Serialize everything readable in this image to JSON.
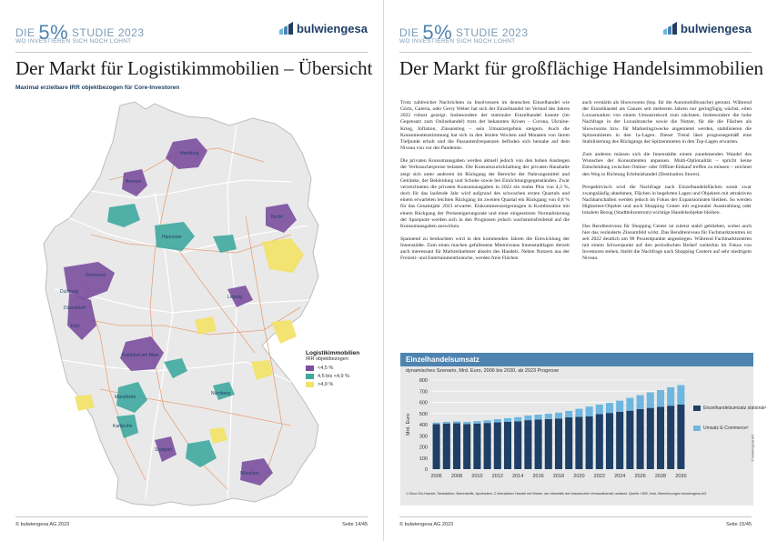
{
  "brand": {
    "die": "DIE",
    "big": "5%",
    "studie": "STUDIE 2023",
    "tagline": "WO INVESTIEREN SICH NOCH LOHNT",
    "logo": "bulwiengesa"
  },
  "left_page": {
    "title": "Der Markt für Logistikimmobilien – Übersicht",
    "subtitle": "Maximal erzielbare IRR objektbezogen für Core-Investoren",
    "legend": {
      "title": "Logistikimmobilien",
      "sub": "IRR objektbezogen",
      "items": [
        {
          "label": "<4,5 %",
          "color": "#7b4f9e"
        },
        {
          "label": "4,5 bis <4,9 %",
          "color": "#3fa99f"
        },
        {
          "label": ">4,9 %",
          "color": "#f2e36b"
        }
      ]
    },
    "cities": [
      "Hamburg",
      "Bremen",
      "Berlin",
      "Hannover",
      "Dortmund",
      "Duisburg",
      "Düsseldorf",
      "Köln",
      "Frankfurt am Main",
      "Mannheim",
      "Karlsruhe",
      "Stuttgart",
      "Nürnberg",
      "München",
      "Leipzig"
    ],
    "footer_left": "© bulwiengesa AG 2023",
    "footer_right": "Seite 14/45"
  },
  "right_page": {
    "title": "Der Markt für großflächige Handelsimmobilien",
    "col1": [
      "Trotz zahlreicher Nachrichten zu Insolvenzen im deutschen Einzelhandel wie Görtz, Galeria, oder Gerry Weber hat sich der Einzelhandel im Verlauf des Jahres 2022 robust gezeigt. Insbesondere der stationäre Einzelhandel konnte (im Gegensatz zum Onlinehandel) trotz der bekannten Krisen – Corona, Ukraine-Krieg, Inflation, Zinsanstieg – sein Umsatzergebnis steigern. Auch die Konsumentenstimmung hat sich in den letzten Wochen und Monaten von ihrem Tiefpunkt erholt und die Passantenfrequenzen befinden sich beinahe auf dem Niveau von vor der Pandemie.",
      "Die privaten Konsumausgaben werden aktuell jedoch von den hohen Anstiegen der Verbraucherpreise belastet. Die Konsumzurückhaltung der privaten Haushalte zeigt sich unter anderem im Rückgang der Bereiche der Nahrungsmittel und Getränke, der Bekleidung und Schuhe sowie bei Einrichtungsgegenständen. Zwar verzeichneten die privaten Konsumausgaben in 2022 ein reales Plus von 4,3 %, doch für das laufende Jahr wird aufgrund des schwachen ersten Quartals und einem erwarteten leichten Rückgang im zweiten Quartal ein Rückgang von 0,8 % für das Gesamtjahr 2023 erwartet. Einkommenszeigerungen in Kombination mit einem Rückgang der Preissteigerungsrate und einer eingesetzten Normalisierung der Sparquote werden sich in den Prognosen jedoch wachstumsfreibend auf die Konsumausgaben auswirken.",
      "Spannend zu beobachten wird in den kommenden Jahren die Entwicklung der Innenstädte. Zum einen machen gefallenene Mietniveaus Innenstadtlagen derzeit auch interessant für Markteilnehmer abseits des Handels. Neben Nutzern aus der Freizeit- und Entertainmentbranche, werden freie Flächen"
    ],
    "col2": [
      "auch verstärkt als Showrooms (bsp. für die Automobilbranche) genutzt. Während der Einzelhandel als Ganzes seit mehreren Jahren nur geringfügig wächst, eilen Luxusmarken von einem Umsatzrekord zum nächsten. Insbesondere die hohe Nachfrage in der Luxusbranche sowie die Nutzer, für die die Flächen als Showrooms bzw. für Marketingzwecke angemietet werden, stabilisieren die Spitzenmieten in den 1a-Lagen. Dieser Trend lässt prognosegemäß eine Stabilisierung des Rückgangs der Spitzenmieten in den Top-Lagen erwarten.",
      "Zum anderen müssen sich die Innenstädte einem zunehmenden Wandel des Wunsches der Konsumenten anpassen. Multi-Optionalität – spricht keine Entscheidung zwischen Online- oder Offline-Einkauf treffen zu müssen – zeichnet den Weg in Richtung Erlebnishandel (Destination Stores).",
      "Perspektivisch wird die Nachfrage nach Einzelhandelsflächen somit zwar zwangsläufig abnehmen, Flächen in begehrten Lagen und Objekten mit attraktiven Nachbarschaften werden jedoch im Fokus der Expansionisten bleiben. So werden Highstreet-Objekte und auch Shopping Center mit regionaler Ausstrahlung oder lokalem Bezug (Stadtteilzentrum) wichtige Handelsobjekte bleiben.",
      "Das Renditeniveau für Shopping Center ist zuletzt stabil geblieben, wobei auch hier das veränderte Zinsumfeld wirkt. Das Renditeniveau für Fachmarktzentren ist seit 2022 deutlich um 90 Prozentpunkte angestiegen. Während Fachmarktzentren mit einem Schwerpunkt auf den periodischen Bedarf weiterhin im Fokus von Investoren stehen, bleibt die Nachfrage nach Shopping Centern auf sehr niedrigem Niveau."
    ],
    "chart_box_title": "Einzelhandelsumsatz",
    "chart_box_sub": "dynamisches Szenario, Mrd. Euro, 2006 bis 2030, ab 2023 Prognose",
    "chart_note": "1 Ohne Kfz-Handel, Tankstellen, Brennstoffe, Apotheken. 2 Interaktiver Handel mit Waren, der ebenfalls den klassischen Versandhandel umfasst. Quelle: HDE, bwh, Berechnungen bulwiengesa AG",
    "chart_copyright": "© bulwiengesa AG",
    "footer_left": "© bulwiengesa AG 2023",
    "footer_right": "Seite 15/45"
  },
  "chart_data": {
    "type": "bar",
    "stacked": true,
    "title": "Einzelhandelsumsatz",
    "subtitle": "dynamisches Szenario, Mrd. Euro, 2006 bis 2030, ab 2023 Prognose",
    "ylabel": "Mrd. Euro",
    "ylim": [
      0,
      800
    ],
    "yticks": [
      0,
      100,
      200,
      300,
      400,
      500,
      600,
      700,
      800
    ],
    "categories": [
      "2006",
      "2007",
      "2008",
      "2009",
      "2010",
      "2011",
      "2012",
      "2013",
      "2014",
      "2015",
      "2016",
      "2017",
      "2018",
      "2019",
      "2020",
      "2021",
      "2022",
      "2023",
      "2024",
      "2025",
      "2026",
      "2027",
      "2028",
      "2029",
      "2030"
    ],
    "xtick_labels": [
      "2006",
      "2008",
      "2010",
      "2012",
      "2014",
      "2016",
      "2018",
      "2020",
      "2022",
      "2024",
      "2026",
      "2028",
      "2030"
    ],
    "series": [
      {
        "name": "Einzelhandelsumsatz stationär¹",
        "color": "#1e3f66",
        "values": [
          405,
          410,
          412,
          405,
          410,
          415,
          420,
          425,
          430,
          440,
          445,
          450,
          455,
          465,
          470,
          475,
          495,
          505,
          515,
          525,
          540,
          550,
          560,
          570,
          580
        ]
      },
      {
        "name": "Umsatz E-Commerce²",
        "color": "#6fb7e0",
        "values": [
          13,
          15,
          17,
          19,
          21,
          24,
          29,
          33,
          37,
          42,
          45,
          49,
          53,
          58,
          72,
          87,
          85,
          90,
          100,
          115,
          125,
          140,
          150,
          165,
          175
        ]
      }
    ],
    "legend_position": "right",
    "grid": true
  }
}
